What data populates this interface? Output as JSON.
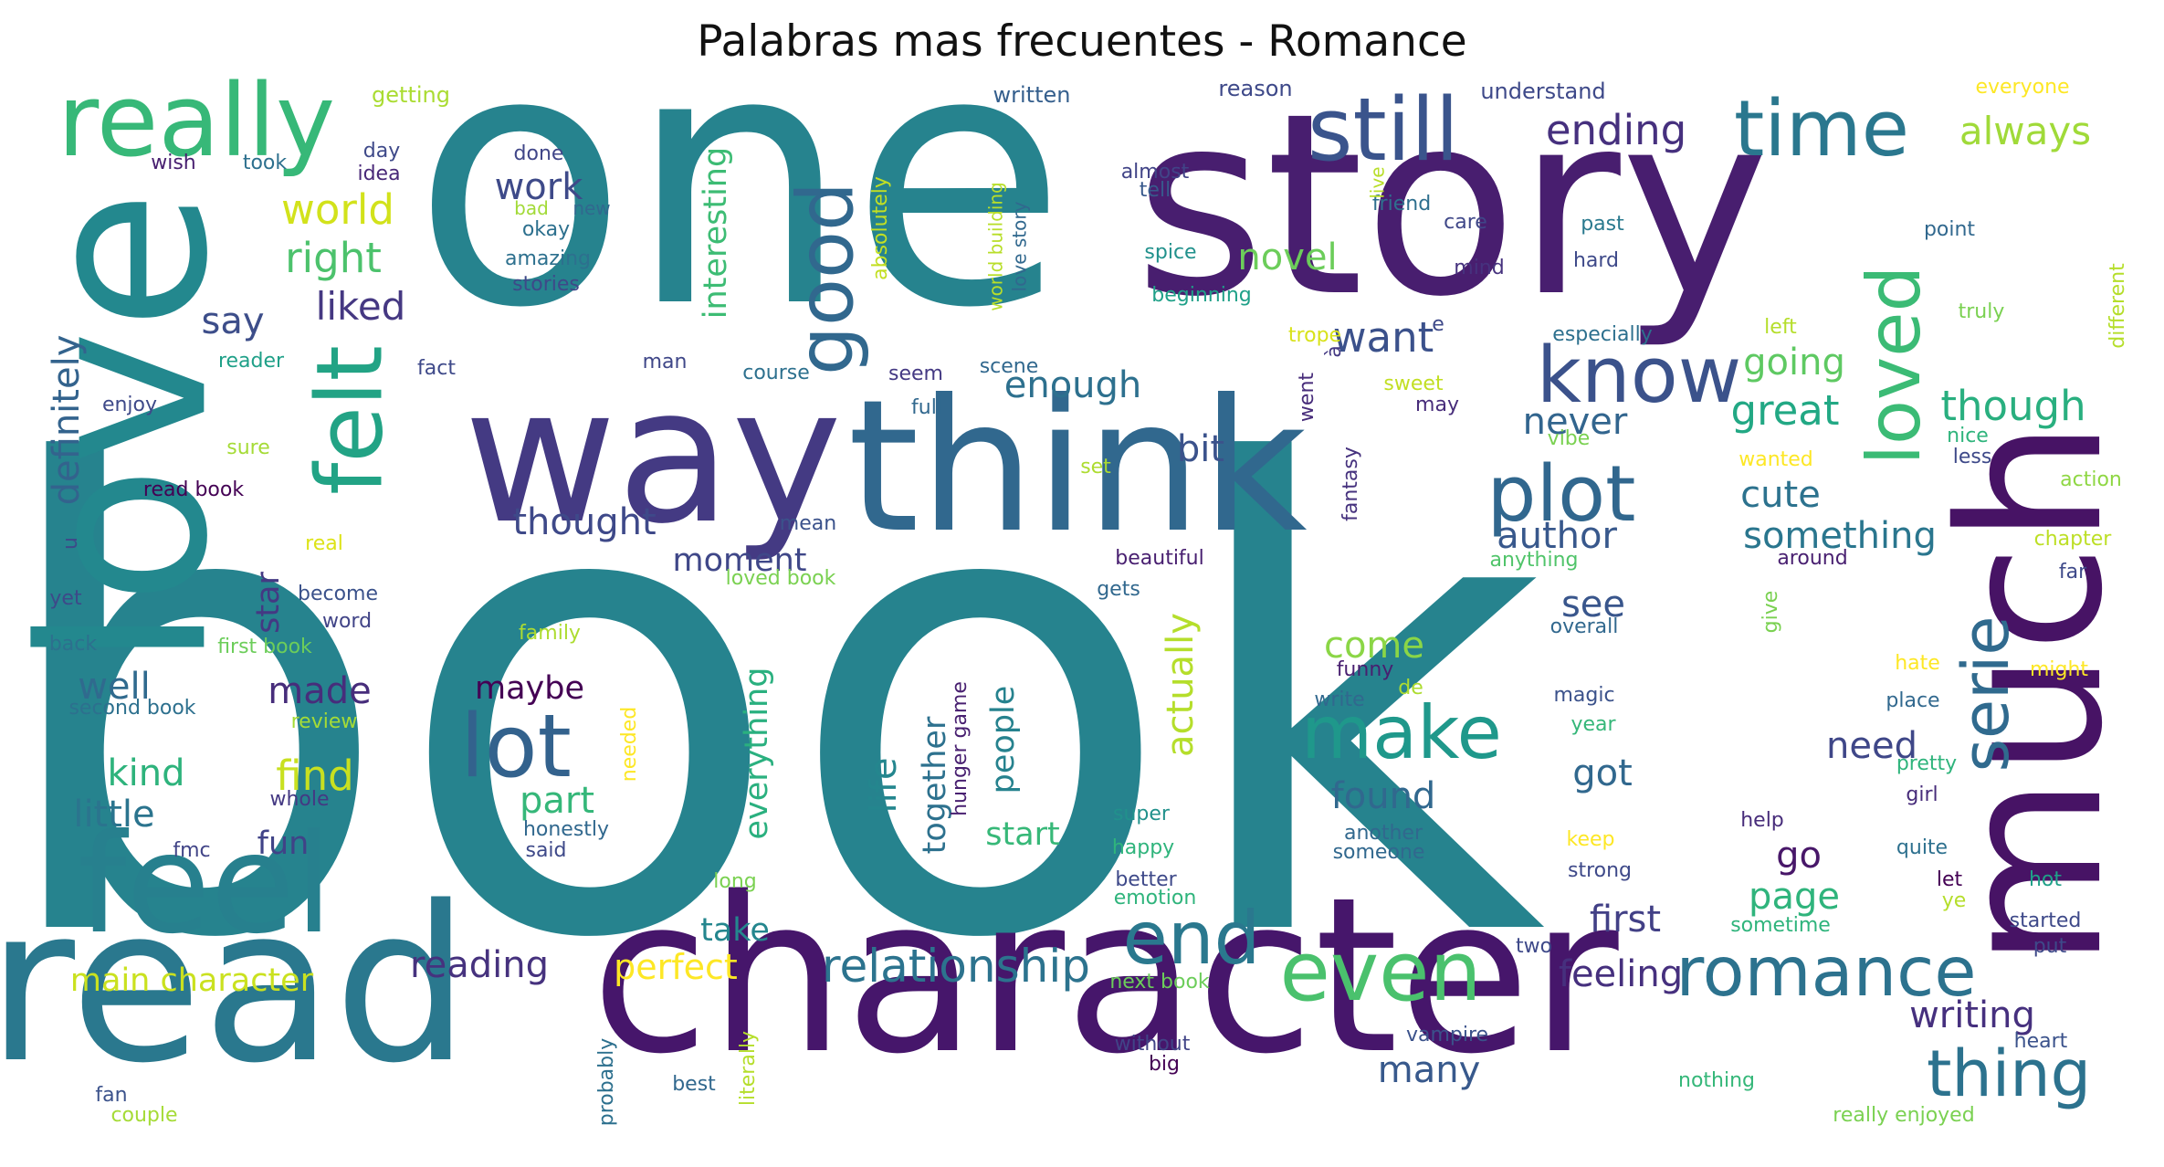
{
  "title": "Palabras mas frecuentes - Romance",
  "words": [
    {
      "text": "book",
      "color": "#26838e"
    },
    {
      "text": "one",
      "color": "#26838e"
    },
    {
      "text": "story",
      "color": "#481e6f"
    },
    {
      "text": "love",
      "color": "#23888e"
    },
    {
      "text": "character",
      "color": "#46166b"
    },
    {
      "text": "read",
      "color": "#2a788e"
    },
    {
      "text": "way",
      "color": "#443a83"
    },
    {
      "text": "think",
      "color": "#31688e"
    },
    {
      "text": "much",
      "color": "#471365"
    },
    {
      "text": "feel",
      "color": "#27808e"
    },
    {
      "text": "really",
      "color": "#37b878"
    },
    {
      "text": "felt",
      "color": "#22a385"
    },
    {
      "text": "still",
      "color": "#3a548c"
    },
    {
      "text": "time",
      "color": "#2a778e"
    },
    {
      "text": "good",
      "color": "#31688e"
    },
    {
      "text": "know",
      "color": "#3b528b"
    },
    {
      "text": "plot",
      "color": "#31678e"
    },
    {
      "text": "loved",
      "color": "#3bbb75"
    },
    {
      "text": "lot",
      "color": "#33628d"
    },
    {
      "text": "make",
      "color": "#1f988b"
    },
    {
      "text": "even",
      "color": "#4ac16d"
    },
    {
      "text": "end",
      "color": "#2a788e"
    },
    {
      "text": "romance",
      "color": "#2c728e"
    },
    {
      "text": "thing",
      "color": "#2c728e"
    },
    {
      "text": "serie",
      "color": "#306a8e"
    },
    {
      "text": "relationship",
      "color": "#2c738e"
    },
    {
      "text": "always",
      "color": "#a0da39"
    },
    {
      "text": "ending",
      "color": "#46307e"
    },
    {
      "text": "world",
      "color": "#d2e21b"
    },
    {
      "text": "work",
      "color": "#3e4a89"
    },
    {
      "text": "right",
      "color": "#4cc26c"
    },
    {
      "text": "liked",
      "color": "#453882"
    },
    {
      "text": "say",
      "color": "#3d4e8a"
    },
    {
      "text": "definitely",
      "color": "#33638d"
    },
    {
      "text": "interesting",
      "color": "#3dbc74"
    },
    {
      "text": "novel",
      "color": "#6ccd5a"
    },
    {
      "text": "want",
      "color": "#3b518b"
    },
    {
      "text": "enough",
      "color": "#2d708e"
    },
    {
      "text": "going",
      "color": "#5ec962"
    },
    {
      "text": "great",
      "color": "#22a884"
    },
    {
      "text": "though",
      "color": "#29af7f"
    },
    {
      "text": "never",
      "color": "#32658e"
    },
    {
      "text": "bit",
      "color": "#3b528b"
    },
    {
      "text": "thought",
      "color": "#3e4989"
    },
    {
      "text": "author",
      "color": "#38588c"
    },
    {
      "text": "cute",
      "color": "#2c728e"
    },
    {
      "text": "something",
      "color": "#2a768e"
    },
    {
      "text": "moment",
      "color": "#3f4788"
    },
    {
      "text": "star",
      "color": "#443983"
    },
    {
      "text": "see",
      "color": "#39568c"
    },
    {
      "text": "come",
      "color": "#8bd646"
    },
    {
      "text": "made",
      "color": "#472d7b"
    },
    {
      "text": "well",
      "color": "#306a8e"
    },
    {
      "text": "maybe",
      "color": "#440154"
    },
    {
      "text": "actually",
      "color": "#b5de2b"
    },
    {
      "text": "everything",
      "color": "#2ab07f"
    },
    {
      "text": "life",
      "color": "#24868e"
    },
    {
      "text": "together",
      "color": "#2d718e"
    },
    {
      "text": "people",
      "color": "#26828e"
    },
    {
      "text": "kind",
      "color": "#2eb37c"
    },
    {
      "text": "find",
      "color": "#c8e020"
    },
    {
      "text": "little",
      "color": "#2b748e"
    },
    {
      "text": "part",
      "color": "#35b779"
    },
    {
      "text": "found",
      "color": "#31688e"
    },
    {
      "text": "need",
      "color": "#3f4788"
    },
    {
      "text": "got",
      "color": "#31688e"
    },
    {
      "text": "fun",
      "color": "#404387"
    },
    {
      "text": "start",
      "color": "#37b878"
    },
    {
      "text": "go",
      "color": "#481769"
    },
    {
      "text": "page",
      "color": "#2fb47c"
    },
    {
      "text": "first",
      "color": "#424086"
    },
    {
      "text": "take",
      "color": "#24868e"
    },
    {
      "text": "main character",
      "color": "#cae11f"
    },
    {
      "text": "reading",
      "color": "#46327e"
    },
    {
      "text": "perfect",
      "color": "#fde725"
    },
    {
      "text": "feeling",
      "color": "#46307e"
    },
    {
      "text": "writing",
      "color": "#46307e"
    },
    {
      "text": "many",
      "color": "#38598c"
    },
    {
      "text": "getting",
      "color": "#aadc32"
    },
    {
      "text": "written",
      "color": "#355f8d"
    },
    {
      "text": "reason",
      "color": "#3e4989"
    },
    {
      "text": "understand",
      "color": "#3e4989"
    },
    {
      "text": "everyone",
      "color": "#fde725"
    },
    {
      "text": "day",
      "color": "#3e4989"
    },
    {
      "text": "wish",
      "color": "#481f70"
    },
    {
      "text": "took",
      "color": "#2d708e"
    },
    {
      "text": "idea",
      "color": "#482878"
    },
    {
      "text": "done",
      "color": "#404688"
    },
    {
      "text": "bad",
      "color": "#a2da37"
    },
    {
      "text": "new",
      "color": "#31688e"
    },
    {
      "text": "okay",
      "color": "#2d708e"
    },
    {
      "text": "amazing",
      "color": "#2d708e"
    },
    {
      "text": "stories",
      "color": "#3e4989"
    },
    {
      "text": "absolutely",
      "color": "#c2df23"
    },
    {
      "text": "world building",
      "color": "#b8de29"
    },
    {
      "text": "love story",
      "color": "#31688e"
    },
    {
      "text": "almost",
      "color": "#414487"
    },
    {
      "text": "tell",
      "color": "#38598c"
    },
    {
      "text": "friend",
      "color": "#2e6f8e"
    },
    {
      "text": "care",
      "color": "#3f4788"
    },
    {
      "text": "past",
      "color": "#29798e"
    },
    {
      "text": "mind",
      "color": "#46327e"
    },
    {
      "text": "hard",
      "color": "#3e4989"
    },
    {
      "text": "point",
      "color": "#31688e"
    },
    {
      "text": "spice",
      "color": "#21918c"
    },
    {
      "text": "beginning",
      "color": "#1fa088"
    },
    {
      "text": "trope",
      "color": "#d8e219"
    },
    {
      "text": "especially",
      "color": "#2d708e"
    },
    {
      "text": "left",
      "color": "#b5de2b"
    },
    {
      "text": "truly",
      "color": "#7ad151"
    },
    {
      "text": "different",
      "color": "#b5de2b"
    },
    {
      "text": "reader",
      "color": "#1fa088"
    },
    {
      "text": "fact",
      "color": "#3e4989"
    },
    {
      "text": "man",
      "color": "#3f4788"
    },
    {
      "text": "course",
      "color": "#2d708e"
    },
    {
      "text": "seem",
      "color": "#443983"
    },
    {
      "text": "scene",
      "color": "#31688e"
    },
    {
      "text": "e",
      "color": "#3e4989"
    },
    {
      "text": "went",
      "color": "#472c7a"
    },
    {
      "text": "à",
      "color": "#443983"
    },
    {
      "text": "sweet",
      "color": "#c2df23"
    },
    {
      "text": "may",
      "color": "#472c7a"
    },
    {
      "text": "fantasy",
      "color": "#46327e"
    },
    {
      "text": "vibe",
      "color": "#7ad151"
    },
    {
      "text": "enjoy",
      "color": "#3e4989"
    },
    {
      "text": "full",
      "color": "#31688e"
    },
    {
      "text": "sure",
      "color": "#a5db36"
    },
    {
      "text": "set",
      "color": "#addc30"
    },
    {
      "text": "nice",
      "color": "#2fb47c"
    },
    {
      "text": "less",
      "color": "#3e4989"
    },
    {
      "text": "wanted",
      "color": "#fde725"
    },
    {
      "text": "action",
      "color": "#8fd744"
    },
    {
      "text": "read book",
      "color": "#440154"
    },
    {
      "text": "mean",
      "color": "#3b528b"
    },
    {
      "text": "chapter",
      "color": "#bddf26"
    },
    {
      "text": "u",
      "color": "#3e4989"
    },
    {
      "text": "real",
      "color": "#dde318"
    },
    {
      "text": "beautiful",
      "color": "#481f70"
    },
    {
      "text": "around",
      "color": "#481f70"
    },
    {
      "text": "anything",
      "color": "#50c46a"
    },
    {
      "text": "far",
      "color": "#3e4989"
    },
    {
      "text": "yet",
      "color": "#3e4989"
    },
    {
      "text": "become",
      "color": "#3b528b"
    },
    {
      "text": "loved book",
      "color": "#7ad151"
    },
    {
      "text": "gets",
      "color": "#31688e"
    },
    {
      "text": "word",
      "color": "#414487"
    },
    {
      "text": "give",
      "color": "#7ad151"
    },
    {
      "text": "back",
      "color": "#2d708e"
    },
    {
      "text": "first book",
      "color": "#6ccd5a"
    },
    {
      "text": "family",
      "color": "#addc30"
    },
    {
      "text": "overall",
      "color": "#31688e"
    },
    {
      "text": "hunger game",
      "color": "#481f70"
    },
    {
      "text": "funny",
      "color": "#481f70"
    },
    {
      "text": "de",
      "color": "#addc30"
    },
    {
      "text": "write",
      "color": "#31688e"
    },
    {
      "text": "magic",
      "color": "#3b528b"
    },
    {
      "text": "hate",
      "color": "#fde725"
    },
    {
      "text": "might",
      "color": "#fde725"
    },
    {
      "text": "place",
      "color": "#31688e"
    },
    {
      "text": "year",
      "color": "#35b779"
    },
    {
      "text": "second book",
      "color": "#2d708e"
    },
    {
      "text": "review",
      "color": "#a5db36"
    },
    {
      "text": "pretty",
      "color": "#2fb47c"
    },
    {
      "text": "girl",
      "color": "#472c7a"
    },
    {
      "text": "whole",
      "color": "#443983"
    },
    {
      "text": "needed",
      "color": "#fde725"
    },
    {
      "text": "super",
      "color": "#21918c"
    },
    {
      "text": "another",
      "color": "#31688e"
    },
    {
      "text": "fmc",
      "color": "#414487"
    },
    {
      "text": "honestly",
      "color": "#31688e"
    },
    {
      "text": "said",
      "color": "#3e4989"
    },
    {
      "text": "keep",
      "color": "#fde725"
    },
    {
      "text": "happy",
      "color": "#2fb47c"
    },
    {
      "text": "someone",
      "color": "#31688e"
    },
    {
      "text": "help",
      "color": "#472c7a"
    },
    {
      "text": "quite",
      "color": "#2d708e"
    },
    {
      "text": "long",
      "color": "#7ad151"
    },
    {
      "text": "strong",
      "color": "#3e4989"
    },
    {
      "text": "let",
      "color": "#440154"
    },
    {
      "text": "hot",
      "color": "#1fa088"
    },
    {
      "text": "better",
      "color": "#3e4989"
    },
    {
      "text": "emotion",
      "color": "#2fb47c"
    },
    {
      "text": "ye",
      "color": "#b5de2b"
    },
    {
      "text": "sometime",
      "color": "#2fb47c"
    },
    {
      "text": "started",
      "color": "#3e4989"
    },
    {
      "text": "two",
      "color": "#3e4989"
    },
    {
      "text": "put",
      "color": "#3e4989"
    },
    {
      "text": "next book",
      "color": "#6ccd5a"
    },
    {
      "text": "literally",
      "color": "#b5de2b"
    },
    {
      "text": "vampire",
      "color": "#3b528b"
    },
    {
      "text": "without",
      "color": "#414487"
    },
    {
      "text": "big",
      "color": "#440154"
    },
    {
      "text": "heart",
      "color": "#3b528b"
    },
    {
      "text": "probably",
      "color": "#2d708e"
    },
    {
      "text": "best",
      "color": "#31688e"
    },
    {
      "text": "nothing",
      "color": "#35b779"
    },
    {
      "text": "fan",
      "color": "#3b528b"
    },
    {
      "text": "couple",
      "color": "#a5db36"
    },
    {
      "text": "really enjoyed",
      "color": "#7ad151"
    },
    {
      "text": "live",
      "color": "#b8de29"
    }
  ]
}
